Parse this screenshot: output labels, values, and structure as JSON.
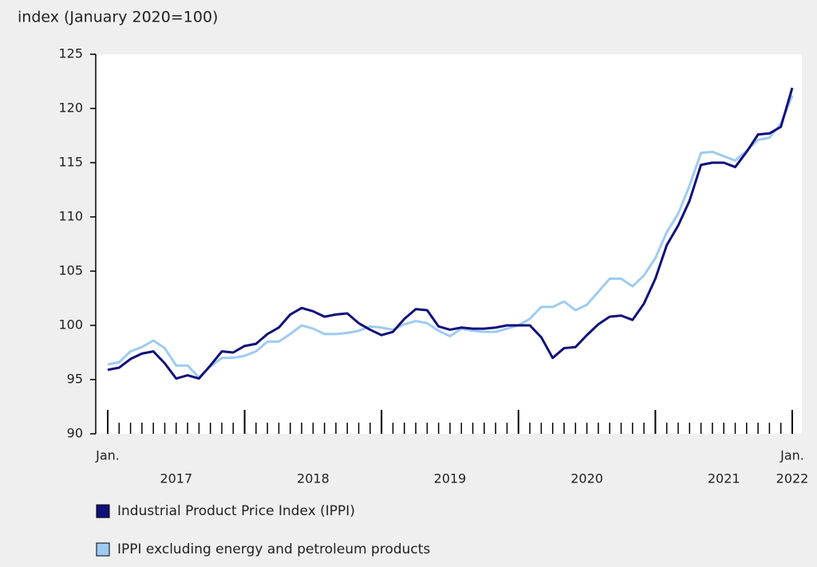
{
  "chart_data": {
    "type": "line",
    "title": "index (January 2020=100)",
    "categories": [
      "Jan.",
      null,
      null,
      null,
      null,
      null,
      null,
      null,
      null,
      null,
      null,
      null,
      null,
      null,
      null,
      null,
      null,
      null,
      null,
      null,
      null,
      null,
      null,
      null,
      null,
      null,
      null,
      null,
      null,
      null,
      null,
      null,
      null,
      null,
      null,
      null,
      null,
      null,
      null,
      null,
      null,
      null,
      null,
      null,
      null,
      null,
      null,
      null,
      null,
      null,
      null,
      null,
      null,
      null,
      null,
      null,
      null,
      null,
      null,
      null,
      "Jan."
    ],
    "x_group_labels": [
      "2017",
      "2018",
      "2019",
      "2020",
      "2021",
      "2022"
    ],
    "series": [
      {
        "name": "Industrial Product Price Index (IPPI)",
        "color": "#10107a",
        "values": [
          95.9,
          96.1,
          96.9,
          97.4,
          97.6,
          96.5,
          95.1,
          95.4,
          95.1,
          96.3,
          97.6,
          97.5,
          98.1,
          98.3,
          99.2,
          99.8,
          101.0,
          101.6,
          101.3,
          100.8,
          101.0,
          101.1,
          100.2,
          99.6,
          99.1,
          99.4,
          100.6,
          101.5,
          101.4,
          99.9,
          99.6,
          99.8,
          99.7,
          99.7,
          99.8,
          100.0,
          100.0,
          100.0,
          98.9,
          97.0,
          97.9,
          98.0,
          99.1,
          100.1,
          100.8,
          100.9,
          100.5,
          102.0,
          104.3,
          107.4,
          109.2,
          111.5,
          114.8,
          115.0,
          115.0,
          114.6,
          116.0,
          117.6,
          117.7,
          118.3,
          121.9
        ]
      },
      {
        "name": "IPPI excluding energy and petroleum products",
        "color": "#9ecbf3",
        "values": [
          96.4,
          96.6,
          97.6,
          98.0,
          98.6,
          97.9,
          96.3,
          96.3,
          95.2,
          96.2,
          97.0,
          97.0,
          97.2,
          97.6,
          98.5,
          98.5,
          99.2,
          100.0,
          99.7,
          99.2,
          99.2,
          99.3,
          99.5,
          99.9,
          99.8,
          99.6,
          100.1,
          100.4,
          100.2,
          99.5,
          99.0,
          99.7,
          99.5,
          99.4,
          99.4,
          99.7,
          100.0,
          100.6,
          101.7,
          101.7,
          102.2,
          101.4,
          101.9,
          103.1,
          104.3,
          104.3,
          103.6,
          104.6,
          106.2,
          108.6,
          110.3,
          112.9,
          115.9,
          116.0,
          115.6,
          115.2,
          116.1,
          117.1,
          117.3,
          118.6,
          121.2
        ]
      }
    ],
    "ylim": [
      90,
      125
    ],
    "yticks": [
      90,
      95,
      100,
      105,
      110,
      115,
      120,
      125
    ],
    "grid": false
  }
}
